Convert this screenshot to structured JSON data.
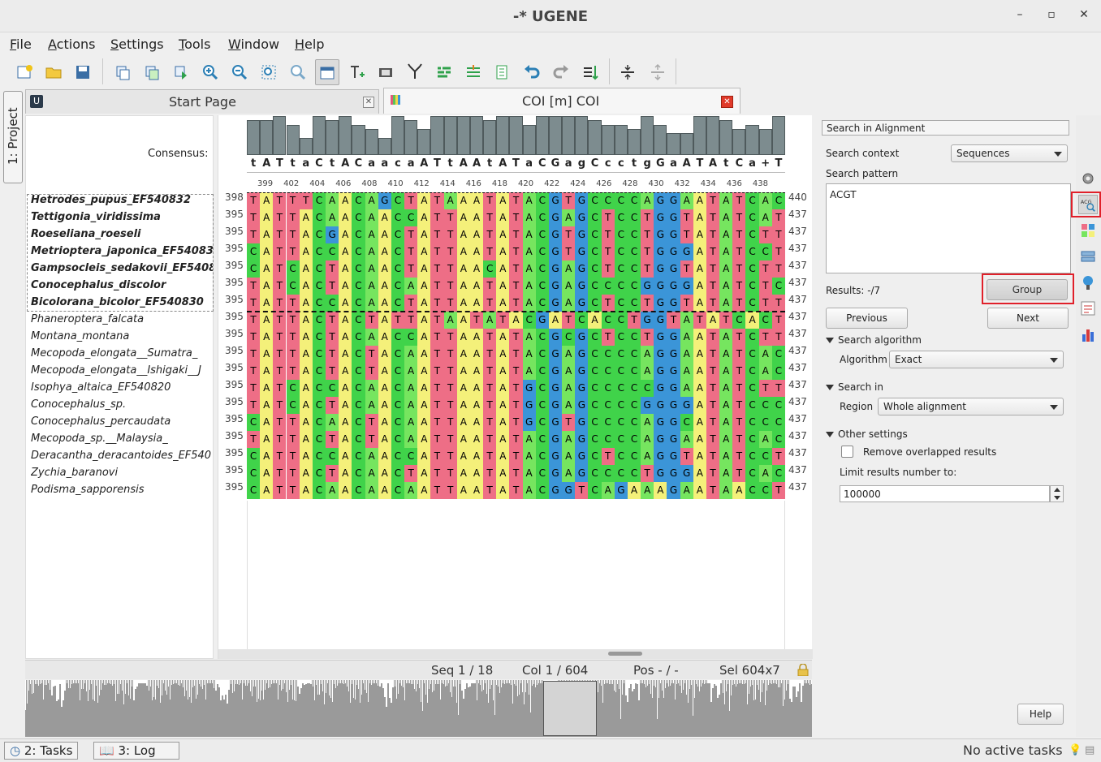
{
  "window": {
    "title": "-* UGENE"
  },
  "menu": [
    {
      "label": "File",
      "ul": "F",
      "rest": "ile"
    },
    {
      "label": "Actions",
      "ul": "A",
      "rest": "ctions"
    },
    {
      "label": "Settings",
      "ul": "S",
      "rest": "ettings"
    },
    {
      "label": "Tools",
      "ul": "T",
      "rest": "ools"
    },
    {
      "label": "Window",
      "ul": "W",
      "rest": "indow"
    },
    {
      "label": "Help",
      "ul": "H",
      "rest": "elp"
    }
  ],
  "tabs": {
    "start_page": "Start Page",
    "coi": "COI [m] COI"
  },
  "project_tab": "1: Project",
  "consensus_label": "Consensus:",
  "consensus": "tATtaCtACaacaATtAAtATaCGagCcctgGaATAtCa+T",
  "ruler": [
    "399",
    "402",
    "404",
    "406",
    "408",
    "410",
    "412",
    "414",
    "416",
    "418",
    "420",
    "422",
    "424",
    "426",
    "428",
    "430",
    "432",
    "434",
    "436",
    "438"
  ],
  "histogram": [
    8,
    8,
    9,
    7,
    4,
    9,
    8,
    9,
    7,
    6,
    4,
    9,
    8,
    6,
    9,
    9,
    9,
    9,
    8,
    9,
    9,
    7,
    9,
    9,
    9,
    9,
    8,
    7,
    7,
    6,
    9,
    7,
    5,
    5,
    9,
    9,
    8,
    6,
    7,
    6,
    9
  ],
  "sequences": [
    {
      "name": "Hetrodes_pupus_EF540832",
      "start": "398",
      "end": "440",
      "bold": true,
      "seq": "TATTTCAACAGCTATAAATATACGTGCCCCAGGAATATCACT"
    },
    {
      "name": "Tettigonia_viridissima",
      "start": "395",
      "end": "437",
      "bold": true,
      "seq": "TATTACAACAACCATTAATATACGAGCTCCTGGTATATCATT"
    },
    {
      "name": "Roeseliana_roeseli",
      "start": "395",
      "end": "437",
      "bold": true,
      "seq": "TATTACGACAACTATTAATATACGTGCTCCTGGTATATCTTT"
    },
    {
      "name": "Metrioptera_japonica_EF54083",
      "start": "395",
      "end": "437",
      "bold": true,
      "seq": "CATTACCACAACTATTAATATACGTGCTCCTGGGATATCCTT"
    },
    {
      "name": "Gampsocleis_sedakovii_EF5408",
      "start": "395",
      "end": "437",
      "bold": true,
      "seq": "CATCACTACAACTATTAACATACGAGCTCCTGGTATATCTTT"
    },
    {
      "name": "Conocephalus_discolor",
      "start": "395",
      "end": "437",
      "bold": true,
      "seq": "TATCACTACAACAATTAATATACGAGCCCCGGGGATATCTCT"
    },
    {
      "name": "Bicolorana_bicolor_EF540830",
      "start": "395",
      "end": "437",
      "bold": true,
      "seq": "TATTACCACAACTATTAATATACGAGCTCCTGGTATATCTTT"
    },
    {
      "name": "Phaneroptera_falcata",
      "start": "395",
      "end": "437",
      "bold": false,
      "seq": "TATTACTACTATTATAATATACGATCACCTGGTATATCACT"
    },
    {
      "name": "Montana_montana",
      "start": "395",
      "end": "437",
      "bold": false,
      "seq": "TATTACTACAACCATTAATATACGCGCTCCTGGAATATCTTT"
    },
    {
      "name": "Mecopoda_elongata__Sumatra_",
      "start": "395",
      "end": "437",
      "bold": false,
      "seq": "TATTACTACTACAATTAATATACGAGCCCCAGGAATATCACT"
    },
    {
      "name": "Mecopoda_elongata__Ishigaki__J",
      "start": "395",
      "end": "437",
      "bold": false,
      "seq": "TATTACTACTACAATTAATATACGAGCCCCAGGAATATCACT"
    },
    {
      "name": "Isophya_altaica_EF540820",
      "start": "395",
      "end": "437",
      "bold": false,
      "seq": "TATCACCACAACAATTAATATGCGAGCCCCCGGAATATCTTT"
    },
    {
      "name": "Conocephalus_sp.",
      "start": "395",
      "end": "437",
      "bold": false,
      "seq": "TATCACTACAACAATTAATATGCGAGCCCCGGGGATATCCCT"
    },
    {
      "name": "Conocephalus_percaudata",
      "start": "395",
      "end": "437",
      "bold": false,
      "seq": "CATTACAACTACAATTAATATGCGTGCCCCAGGCATATCCCT"
    },
    {
      "name": "Mecopoda_sp.__Malaysia_",
      "start": "395",
      "end": "437",
      "bold": false,
      "seq": "TATTACTACTACAATTAATATACGAGCCCCAGGAATATCACT"
    },
    {
      "name": "Deracantha_deracantoides_EF540",
      "start": "395",
      "end": "437",
      "bold": false,
      "seq": "CATTACCACAACCATTAATATACGAGCTCCAGGTATATCCTT"
    },
    {
      "name": "Zychia_baranovi",
      "start": "395",
      "end": "437",
      "bold": false,
      "seq": "CATTACTACAACTATTAATATACGAGCCCCTGGGATATCACT"
    },
    {
      "name": "Podisma_sapporensis",
      "start": "395",
      "end": "437",
      "bold": false,
      "seq": "CATTACAACAACAATTAATATACGGTCAGAAAGAATAACCTT"
    }
  ],
  "colors": {
    "A": "#76e55f",
    "C": "#40d34a",
    "G": "#3b95d8",
    "T": "#ee6e86",
    "Tb": "#f58aa0",
    "Y": "#f4f07a",
    "accent": "#e0202a"
  },
  "status": {
    "seq": "Seq 1 / 18",
    "col": "Col 1 / 604",
    "pos": "Pos - / -",
    "sel": "Sel 604x7"
  },
  "search": {
    "header": "Search in Alignment",
    "context_label": "Search context",
    "context_value": "Sequences",
    "pattern_label": "Search pattern",
    "pattern_value": "ACGT",
    "results": "Results: -/7",
    "group": "Group",
    "previous": "Previous",
    "next": "Next",
    "algo_section": "Search algorithm",
    "algo_label": "Algorithm",
    "algo_value": "Exact",
    "in_section": "Search in",
    "region_label": "Region",
    "region_value": "Whole alignment",
    "other_section": "Other settings",
    "remove_overlapped": "Remove overlapped results",
    "limit_label": "Limit results number to:",
    "limit_value": "100000",
    "help": "Help"
  },
  "bottom": {
    "tasks": "2: Tasks",
    "log": "3: Log",
    "status": "No active tasks"
  }
}
